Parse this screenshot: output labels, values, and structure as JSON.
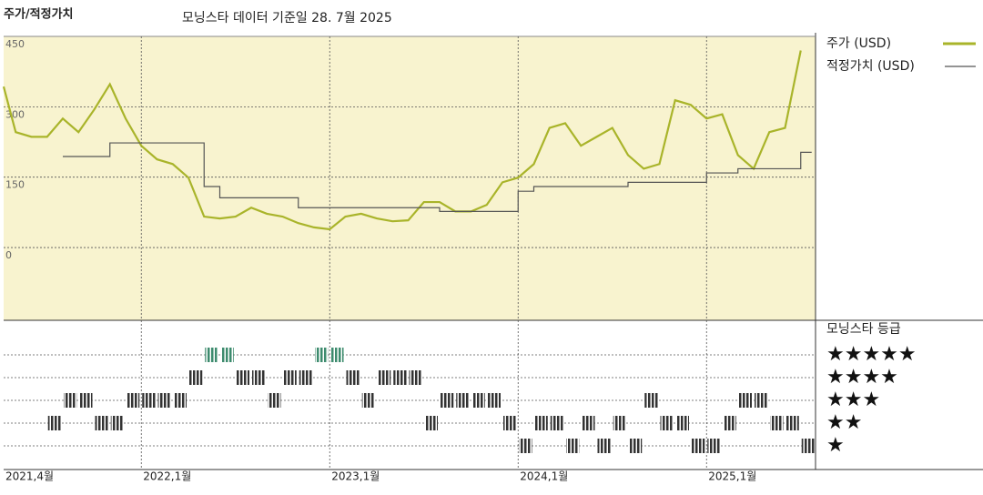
{
  "chart_data": {
    "type": "line",
    "title": "주가/적정가치",
    "subtitle": "모닝스타 데이터 기준일 28. 7월 2025",
    "categories": [
      "2021-04",
      "2021-05",
      "2021-06",
      "2021-07",
      "2021-08",
      "2021-09",
      "2021-10",
      "2021-11",
      "2021-12",
      "2022-01",
      "2022-02",
      "2022-03",
      "2022-04",
      "2022-05",
      "2022-06",
      "2022-07",
      "2022-08",
      "2022-09",
      "2022-10",
      "2022-11",
      "2022-12",
      "2023-01",
      "2023-02",
      "2023-03",
      "2023-04",
      "2023-05",
      "2023-06",
      "2023-07",
      "2023-08",
      "2023-09",
      "2023-10",
      "2023-11",
      "2023-12",
      "2024-01",
      "2024-02",
      "2024-03",
      "2024-04",
      "2024-05",
      "2024-06",
      "2024-07",
      "2024-08",
      "2024-09",
      "2024-10",
      "2024-11",
      "2024-12",
      "2025-01",
      "2025-02",
      "2025-03",
      "2025-04",
      "2025-05",
      "2025-06",
      "2025-07"
    ],
    "xticks": [
      {
        "value": "2021-04",
        "label": "2021,4월"
      },
      {
        "value": "2022-01",
        "label": "2022,1월"
      },
      {
        "value": "2023-01",
        "label": "2023,1월"
      },
      {
        "value": "2024-01",
        "label": "2024,1월"
      },
      {
        "value": "2025-01",
        "label": "2025,1월"
      }
    ],
    "ylim": [
      -155,
      450
    ],
    "yticks": [
      0,
      150,
      300,
      450
    ],
    "grid": true,
    "series": [
      {
        "name": "주가 (USD)",
        "color": "#a9b42a",
        "values": [
          343,
          246,
          236,
          236,
          275,
          246,
          294,
          348,
          275,
          217,
          188,
          178,
          149,
          66,
          62,
          66,
          85,
          72,
          66,
          52,
          43,
          39,
          66,
          72,
          62,
          56,
          58,
          97,
          97,
          77,
          77,
          91,
          139,
          149,
          178,
          255,
          265,
          217,
          236,
          255,
          197,
          168,
          178,
          314,
          304,
          275,
          284,
          197,
          168,
          246,
          255,
          420
        ]
      },
      {
        "name": "적정가치 (USD)",
        "color": "#555555",
        "step": true,
        "values": [
          null,
          null,
          null,
          null,
          194,
          194,
          194,
          223,
          223,
          223,
          223,
          223,
          223,
          130,
          106,
          106,
          106,
          106,
          106,
          85,
          85,
          85,
          85,
          85,
          85,
          85,
          85,
          85,
          77,
          77,
          77,
          77,
          77,
          120,
          130,
          130,
          130,
          130,
          130,
          130,
          139,
          139,
          139,
          139,
          139,
          159,
          159,
          168,
          168,
          168,
          168,
          203
        ]
      }
    ],
    "rating": {
      "title": "모닝스타 등급",
      "levels": [
        1,
        2,
        3,
        4,
        5
      ],
      "labels": [
        "★",
        "★★",
        "★★★",
        "★★★★",
        "★★★★★"
      ],
      "colors": [
        "#333333",
        "#333333",
        "#333333",
        "#333333",
        "#3d8b6e"
      ],
      "values": [
        null,
        null,
        null,
        2,
        3,
        3,
        2,
        2,
        3,
        3,
        3,
        3,
        4,
        5,
        5,
        4,
        4,
        3,
        4,
        4,
        5,
        5,
        4,
        3,
        4,
        4,
        4,
        2,
        3,
        3,
        3,
        3,
        2,
        1,
        2,
        2,
        1,
        2,
        1,
        2,
        1,
        3,
        2,
        2,
        1,
        1,
        2,
        3,
        3,
        2,
        2,
        1
      ]
    }
  }
}
